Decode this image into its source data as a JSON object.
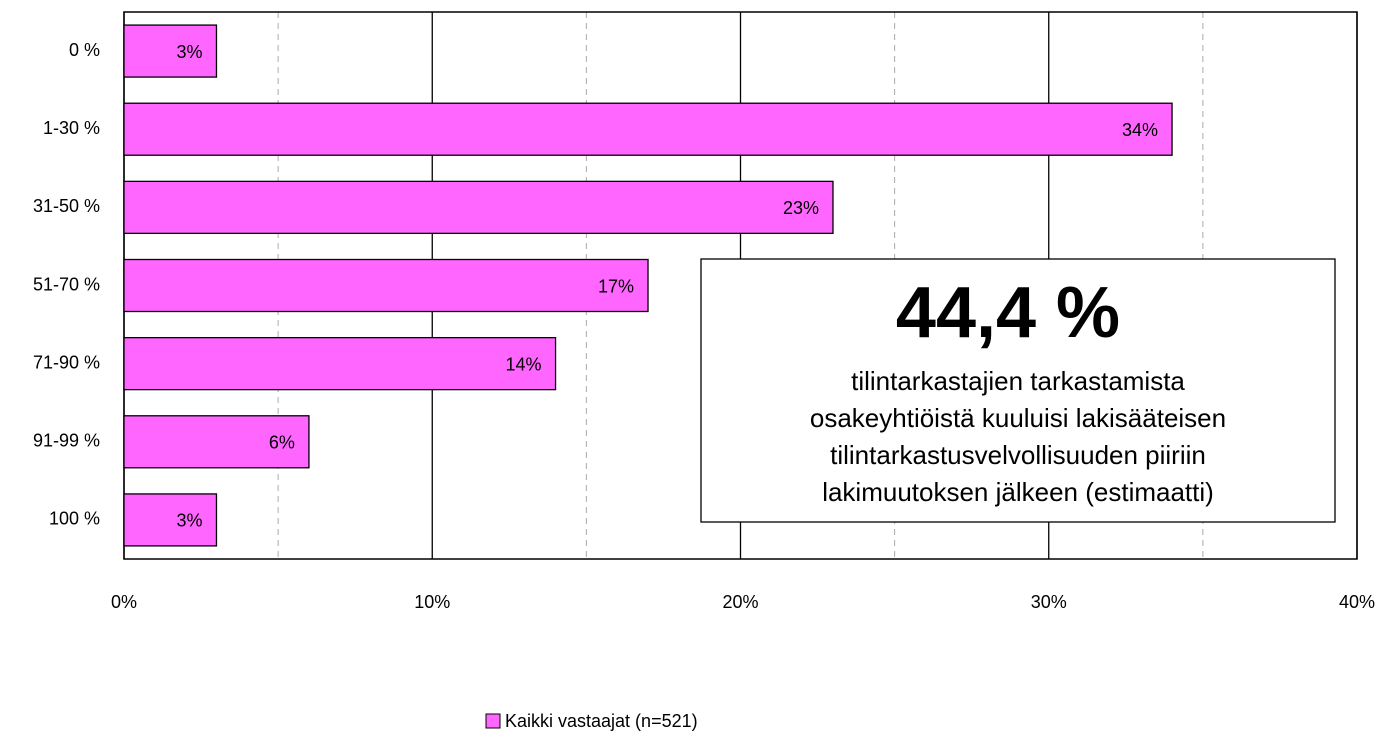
{
  "chart_data": {
    "type": "bar",
    "orientation": "horizontal",
    "categories": [
      "0 %",
      "1-30 %",
      "31-50 %",
      "51-70 %",
      "71-90 %",
      "91-99 %",
      "100 %"
    ],
    "series": [
      {
        "name": "Kaikki vastaajat (n=521)",
        "color": "#ff66ff",
        "values": [
          3,
          34,
          23,
          17,
          14,
          6,
          3
        ],
        "value_labels": [
          "3%",
          "34%",
          "23%",
          "17%",
          "14%",
          "6%",
          "3%"
        ]
      }
    ],
    "xlim": [
      0,
      40
    ],
    "xticks": [
      {
        "value": 0,
        "label": "0%"
      },
      {
        "value": 10,
        "label": "10%"
      },
      {
        "value": 20,
        "label": "20%"
      },
      {
        "value": 30,
        "label": "30%"
      },
      {
        "value": 40,
        "label": "40%"
      }
    ],
    "minor_xticks": [
      5,
      15,
      25,
      35
    ],
    "grid": true,
    "legend": "bottom",
    "annotation": {
      "headline": "44,4 %",
      "lines": [
        "tilintarkastajien tarkastamista",
        "osakeyhtiöistä kuuluisi lakisääteisen",
        "tilintarkastusvelvollisuuden piiriin",
        "lakimuutoksen jälkeen (estimaatti)"
      ]
    }
  }
}
